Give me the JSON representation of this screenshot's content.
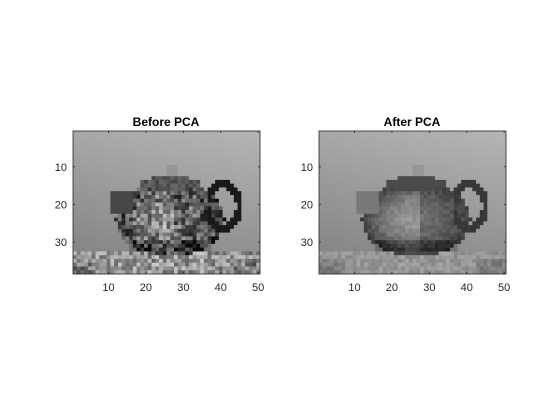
{
  "figure": {
    "background": "#ffffff"
  },
  "chart_data": [
    {
      "type": "heatmap",
      "title": "Before PCA",
      "colormap": "gray",
      "image_size": [
        50,
        38
      ],
      "xlim": [
        0.5,
        50.5
      ],
      "ylim": [
        38.5,
        0.5
      ],
      "y_direction": "reverse",
      "xticks": [
        10,
        20,
        30,
        40,
        50
      ],
      "yticks": [
        10,
        20,
        30
      ],
      "content": "teapot",
      "detail": "high"
    },
    {
      "type": "heatmap",
      "title": "After PCA",
      "colormap": "gray",
      "image_size": [
        50,
        38
      ],
      "xlim": [
        0.5,
        50.5
      ],
      "ylim": [
        38.5,
        0.5
      ],
      "y_direction": "reverse",
      "xticks": [
        10,
        20,
        30,
        40,
        50
      ],
      "yticks": [
        10,
        20,
        30
      ],
      "content": "teapot",
      "detail": "smoothed"
    }
  ]
}
